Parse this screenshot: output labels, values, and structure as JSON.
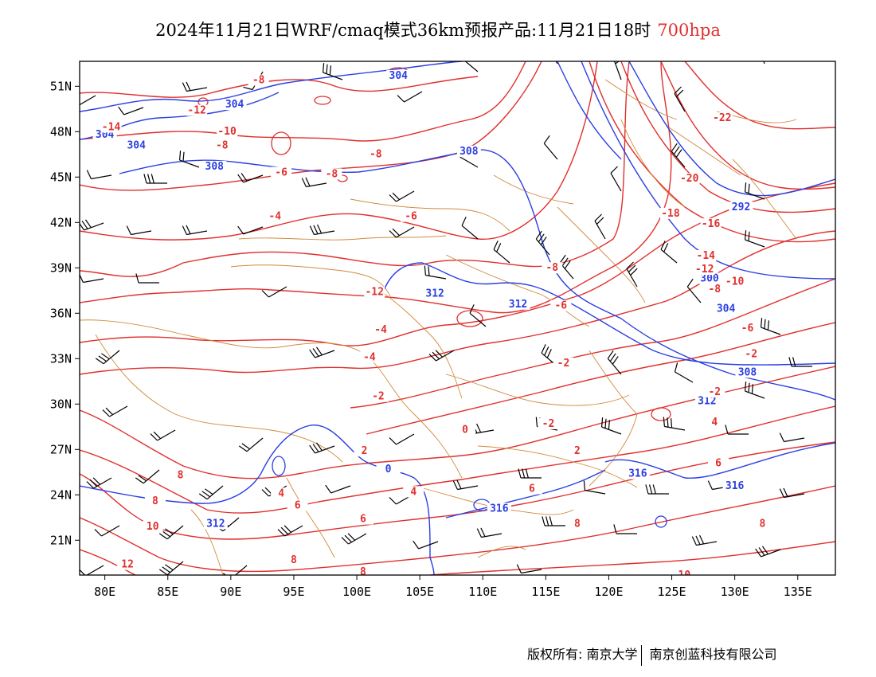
{
  "title": {
    "main": "2024年11月21日WRF/cmaq模式36km预报产品:11月21日18时",
    "level": "700hpa"
  },
  "axes": {
    "lon_labels": [
      "80E",
      "85E",
      "90E",
      "95E",
      "100E",
      "105E",
      "110E",
      "115E",
      "120E",
      "125E",
      "130E",
      "135E"
    ],
    "lat_labels": [
      "51N",
      "48N",
      "45N",
      "42N",
      "39N",
      "36N",
      "33N",
      "30N",
      "27N",
      "24N",
      "21N"
    ]
  },
  "colors": {
    "geopotential": "#2b3fe0",
    "temperature": "#e0302e",
    "borders": "#d2893a",
    "wind": "#000000"
  },
  "contour_labels": {
    "geopotential": [
      {
        "text": "304",
        "lon": 103.3,
        "lat": 51.6
      },
      {
        "text": "304",
        "lon": 90.3,
        "lat": 49.7
      },
      {
        "text": "304",
        "lon": 80.0,
        "lat": 47.7
      },
      {
        "text": "304",
        "lon": 82.5,
        "lat": 47.0
      },
      {
        "text": "308",
        "lon": 88.7,
        "lat": 45.6
      },
      {
        "text": "308",
        "lon": 108.9,
        "lat": 46.6
      },
      {
        "text": "292",
        "lon": 130.5,
        "lat": 42.9
      },
      {
        "text": "300",
        "lon": 128.0,
        "lat": 38.2
      },
      {
        "text": "304",
        "lon": 129.3,
        "lat": 36.2
      },
      {
        "text": "308",
        "lon": 131.0,
        "lat": 32.0
      },
      {
        "text": "312",
        "lon": 127.8,
        "lat": 30.1
      },
      {
        "text": "312",
        "lon": 106.2,
        "lat": 37.2
      },
      {
        "text": "312",
        "lon": 112.8,
        "lat": 36.5
      },
      {
        "text": "312",
        "lon": 88.8,
        "lat": 22.0
      },
      {
        "text": "316",
        "lon": 122.3,
        "lat": 25.3
      },
      {
        "text": "316",
        "lon": 130.0,
        "lat": 24.5
      },
      {
        "text": "316",
        "lon": 111.3,
        "lat": 23.0
      },
      {
        "text": "0",
        "lon": 102.5,
        "lat": 25.6
      }
    ],
    "temperature": [
      {
        "text": "-8",
        "lon": 92.2,
        "lat": 51.3
      },
      {
        "text": "-12",
        "lon": 87.3,
        "lat": 49.3
      },
      {
        "text": "-14",
        "lon": 80.5,
        "lat": 48.2
      },
      {
        "text": "-10",
        "lon": 89.7,
        "lat": 47.9
      },
      {
        "text": "-8",
        "lon": 89.3,
        "lat": 47.0
      },
      {
        "text": "-8",
        "lon": 101.5,
        "lat": 46.4
      },
      {
        "text": "-8",
        "lon": 98.0,
        "lat": 45.1
      },
      {
        "text": "-6",
        "lon": 94.0,
        "lat": 45.2
      },
      {
        "text": "-6",
        "lon": 104.3,
        "lat": 42.3
      },
      {
        "text": "-4",
        "lon": 93.5,
        "lat": 42.3
      },
      {
        "text": "-22",
        "lon": 129.0,
        "lat": 48.8
      },
      {
        "text": "-20",
        "lon": 126.4,
        "lat": 44.8
      },
      {
        "text": "-18",
        "lon": 124.9,
        "lat": 42.5
      },
      {
        "text": "-16",
        "lon": 128.1,
        "lat": 41.8
      },
      {
        "text": "-14",
        "lon": 127.7,
        "lat": 39.7
      },
      {
        "text": "-12",
        "lon": 127.6,
        "lat": 38.8
      },
      {
        "text": "-10",
        "lon": 130.0,
        "lat": 38.0
      },
      {
        "text": "-8",
        "lon": 128.4,
        "lat": 37.5
      },
      {
        "text": "-6",
        "lon": 131.0,
        "lat": 34.9
      },
      {
        "text": "-2",
        "lon": 131.3,
        "lat": 33.2
      },
      {
        "text": "-2",
        "lon": 128.4,
        "lat": 30.7
      },
      {
        "text": "-8",
        "lon": 115.5,
        "lat": 38.9
      },
      {
        "text": "-6",
        "lon": 116.2,
        "lat": 36.4
      },
      {
        "text": "-12",
        "lon": 101.4,
        "lat": 37.3
      },
      {
        "text": "-4",
        "lon": 101.9,
        "lat": 34.8
      },
      {
        "text": "-4",
        "lon": 101.0,
        "lat": 33.0
      },
      {
        "text": "-2",
        "lon": 116.4,
        "lat": 32.6
      },
      {
        "text": "-2",
        "lon": 101.7,
        "lat": 30.4
      },
      {
        "text": "-2",
        "lon": 115.2,
        "lat": 28.6
      },
      {
        "text": "0",
        "lon": 108.6,
        "lat": 28.2
      },
      {
        "text": "2",
        "lon": 100.6,
        "lat": 26.8
      },
      {
        "text": "2",
        "lon": 117.5,
        "lat": 26.8
      },
      {
        "text": "4",
        "lon": 128.4,
        "lat": 28.7
      },
      {
        "text": "4",
        "lon": 94.0,
        "lat": 24.0
      },
      {
        "text": "4",
        "lon": 104.5,
        "lat": 24.1
      },
      {
        "text": "6",
        "lon": 95.3,
        "lat": 23.2
      },
      {
        "text": "6",
        "lon": 113.9,
        "lat": 24.3
      },
      {
        "text": "6",
        "lon": 128.7,
        "lat": 26.0
      },
      {
        "text": "6",
        "lon": 100.5,
        "lat": 22.3
      },
      {
        "text": "8",
        "lon": 86.0,
        "lat": 25.2
      },
      {
        "text": "8",
        "lon": 84.0,
        "lat": 23.5
      },
      {
        "text": "8",
        "lon": 117.5,
        "lat": 22.0
      },
      {
        "text": "8",
        "lon": 132.2,
        "lat": 22.0
      },
      {
        "text": "8",
        "lon": 95.0,
        "lat": 19.6
      },
      {
        "text": "8",
        "lon": 100.5,
        "lat": 18.8
      },
      {
        "text": "10",
        "lon": 83.8,
        "lat": 21.8
      },
      {
        "text": "10",
        "lon": 126.0,
        "lat": 18.6
      },
      {
        "text": "12",
        "lon": 81.8,
        "lat": 19.3
      }
    ]
  },
  "credits": {
    "left": "版权所有: 南京大学",
    "right": "南京创蓝科技有限公司"
  }
}
